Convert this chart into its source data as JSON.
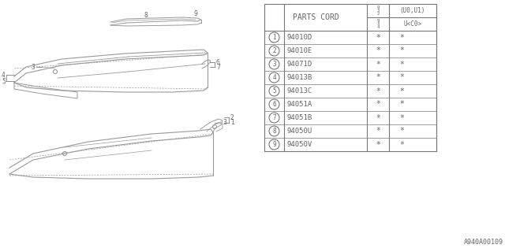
{
  "bg_color": "#ffffff",
  "part_number_label": "A940A00109",
  "table": {
    "rows": [
      [
        "1",
        "94010D",
        "*",
        "*"
      ],
      [
        "2",
        "94010E",
        "*",
        "*"
      ],
      [
        "3",
        "94071D",
        "*",
        "*"
      ],
      [
        "4",
        "94013B",
        "*",
        "*"
      ],
      [
        "5",
        "94013C",
        "*",
        "*"
      ],
      [
        "6",
        "94051A",
        "*",
        "*"
      ],
      [
        "7",
        "94051B",
        "*",
        "*"
      ],
      [
        "8",
        "94050U",
        "*",
        "*"
      ],
      [
        "9",
        "94050V",
        "*",
        "*"
      ]
    ]
  },
  "line_color": "#777777",
  "text_color": "#666666",
  "diagram_color": "#999999"
}
